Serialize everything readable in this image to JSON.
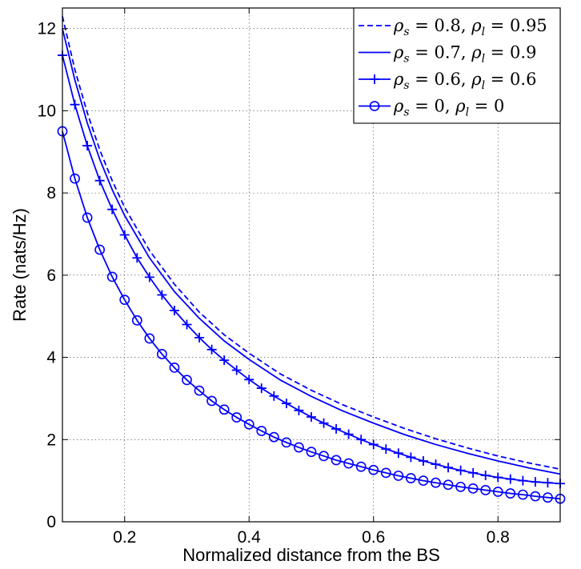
{
  "chart_data": {
    "type": "line",
    "xlabel": "Normalized distance from the BS",
    "ylabel": "Rate (nats/Hz)",
    "xlim": [
      0.1,
      0.9
    ],
    "ylim": [
      0,
      12.5
    ],
    "xticks": [
      0.2,
      0.4,
      0.6,
      0.8
    ],
    "yticks": [
      0,
      2,
      4,
      6,
      8,
      10,
      12
    ],
    "xtick_labels": [
      "0.2",
      "0.4",
      "0.6",
      "0.8"
    ],
    "ytick_labels": [
      "0",
      "2",
      "4",
      "6",
      "8",
      "10",
      "12"
    ],
    "grid": true,
    "legend_position": "top-right",
    "series_color": "#0000ff",
    "series": [
      {
        "label_parts": [
          [
            "ρ",
            "s",
            " = 0.8, "
          ],
          [
            "ρ",
            "l",
            " = 0.95"
          ]
        ],
        "style": "dashed",
        "marker": "none",
        "x": [
          0.1,
          0.12,
          0.14,
          0.16,
          0.18,
          0.2,
          0.24,
          0.28,
          0.32,
          0.36,
          0.4,
          0.45,
          0.5,
          0.55,
          0.6,
          0.65,
          0.7,
          0.75,
          0.8,
          0.85,
          0.9
        ],
        "y": [
          12.3,
          11.0,
          9.95,
          9.05,
          8.3,
          7.65,
          6.6,
          5.78,
          5.1,
          4.55,
          4.1,
          3.6,
          3.2,
          2.85,
          2.55,
          2.27,
          2.02,
          1.8,
          1.6,
          1.43,
          1.28
        ]
      },
      {
        "label_parts": [
          [
            "ρ",
            "s",
            " = 0.7, "
          ],
          [
            "ρ",
            "l",
            " = 0.9"
          ]
        ],
        "style": "solid",
        "marker": "none",
        "x": [
          0.1,
          0.12,
          0.14,
          0.16,
          0.18,
          0.2,
          0.24,
          0.28,
          0.32,
          0.36,
          0.4,
          0.45,
          0.5,
          0.55,
          0.6,
          0.65,
          0.7,
          0.75,
          0.8,
          0.85,
          0.9
        ],
        "y": [
          12.0,
          10.75,
          9.7,
          8.82,
          8.08,
          7.45,
          6.42,
          5.6,
          4.95,
          4.4,
          3.95,
          3.45,
          3.05,
          2.7,
          2.4,
          2.12,
          1.88,
          1.67,
          1.48,
          1.31,
          1.16
        ]
      },
      {
        "label_parts": [
          [
            "ρ",
            "s",
            " = 0.6, "
          ],
          [
            "ρ",
            "l",
            " = 0.6"
          ]
        ],
        "style": "solid",
        "marker": "plus",
        "x": [
          0.1,
          0.12,
          0.14,
          0.16,
          0.18,
          0.2,
          0.22,
          0.24,
          0.26,
          0.28,
          0.3,
          0.32,
          0.34,
          0.36,
          0.38,
          0.4,
          0.42,
          0.44,
          0.46,
          0.48,
          0.5,
          0.52,
          0.54,
          0.56,
          0.58,
          0.6,
          0.62,
          0.64,
          0.66,
          0.68,
          0.7,
          0.72,
          0.74,
          0.76,
          0.78,
          0.8,
          0.82,
          0.84,
          0.86,
          0.88,
          0.9
        ],
        "y": [
          11.35,
          10.15,
          9.15,
          8.3,
          7.6,
          6.98,
          6.42,
          5.95,
          5.52,
          5.14,
          4.8,
          4.48,
          4.19,
          3.93,
          3.69,
          3.46,
          3.25,
          3.06,
          2.88,
          2.71,
          2.55,
          2.4,
          2.26,
          2.13,
          2.0,
          1.88,
          1.77,
          1.67,
          1.57,
          1.48,
          1.4,
          1.32,
          1.25,
          1.19,
          1.13,
          1.08,
          1.04,
          1.0,
          0.97,
          0.95,
          0.93
        ]
      },
      {
        "label_parts": [
          [
            "ρ",
            "s",
            " = 0, "
          ],
          [
            "ρ",
            "l",
            " = 0"
          ]
        ],
        "style": "solid",
        "marker": "circle",
        "x": [
          0.1,
          0.12,
          0.14,
          0.16,
          0.18,
          0.2,
          0.22,
          0.24,
          0.26,
          0.28,
          0.3,
          0.32,
          0.34,
          0.36,
          0.38,
          0.4,
          0.42,
          0.44,
          0.46,
          0.48,
          0.5,
          0.52,
          0.54,
          0.56,
          0.58,
          0.6,
          0.62,
          0.64,
          0.66,
          0.68,
          0.7,
          0.72,
          0.74,
          0.76,
          0.78,
          0.8,
          0.82,
          0.84,
          0.86,
          0.88,
          0.9
        ],
        "y": [
          9.5,
          8.35,
          7.4,
          6.62,
          5.96,
          5.4,
          4.9,
          4.46,
          4.08,
          3.75,
          3.45,
          3.19,
          2.94,
          2.73,
          2.54,
          2.37,
          2.21,
          2.06,
          1.93,
          1.81,
          1.7,
          1.6,
          1.5,
          1.42,
          1.34,
          1.26,
          1.19,
          1.12,
          1.06,
          1.0,
          0.95,
          0.9,
          0.85,
          0.81,
          0.77,
          0.73,
          0.69,
          0.66,
          0.62,
          0.59,
          0.56
        ]
      }
    ]
  }
}
